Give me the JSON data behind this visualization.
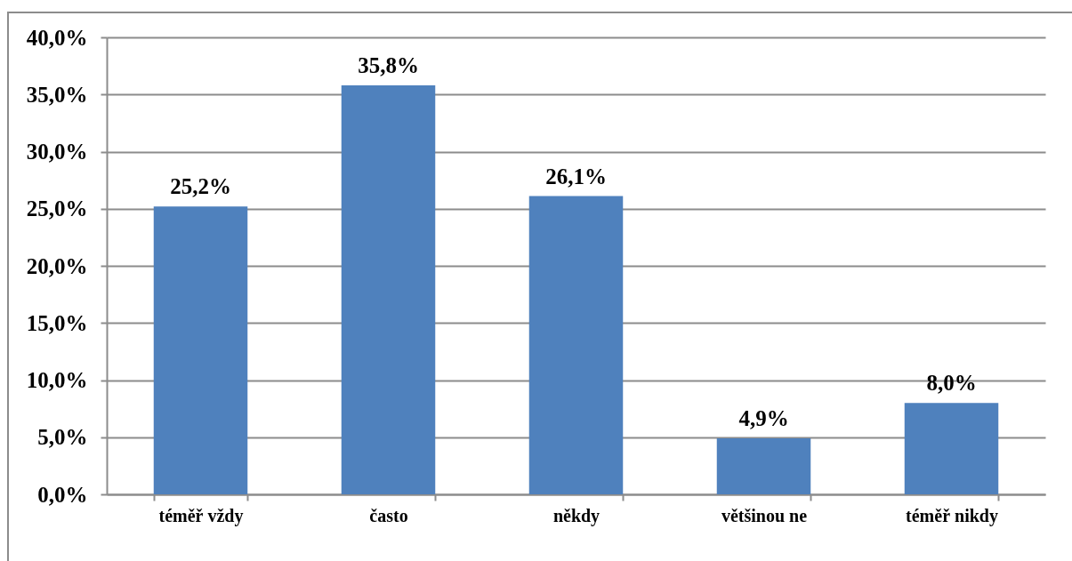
{
  "chart_data": {
    "type": "bar",
    "categories": [
      "téměř vždy",
      "často",
      "někdy",
      "většinou ne",
      "téměř nikdy"
    ],
    "values": [
      25.2,
      35.8,
      26.1,
      4.9,
      8.0
    ],
    "color": "#4f81bd",
    "value_labels": [
      "25,2%",
      "35,8%",
      "26,1%",
      "4,9%",
      "8,0%"
    ],
    "ylim": [
      0,
      40
    ],
    "yticks": [
      {
        "value": 0,
        "label": "0,0%"
      },
      {
        "value": 5,
        "label": "5,0%"
      },
      {
        "value": 10,
        "label": "10,0%"
      },
      {
        "value": 15,
        "label": "15,0%"
      },
      {
        "value": 20,
        "label": "20,0%"
      },
      {
        "value": 25,
        "label": "25,0%"
      },
      {
        "value": 30,
        "label": "30,0%"
      },
      {
        "value": 35,
        "label": "35,0%"
      },
      {
        "value": 40,
        "label": "40,0%"
      }
    ],
    "grid": "y"
  }
}
